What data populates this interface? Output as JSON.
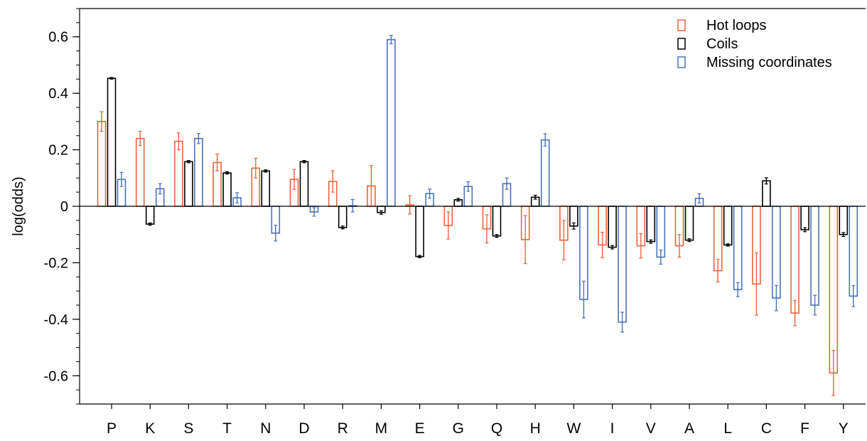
{
  "chart_data": {
    "type": "bar",
    "ylabel": "log(odds)",
    "xlabel": "",
    "ylim": [
      -0.7,
      0.7
    ],
    "yticks": [
      "0.6",
      "0.4",
      "0.2",
      "0",
      "-0.2",
      "-0.4",
      "-0.6"
    ],
    "ytick_values": [
      0.6,
      0.4,
      0.2,
      0,
      -0.2,
      -0.4,
      -0.6
    ],
    "minor_tick_step": 0.05,
    "grid": false,
    "legend_position": "top-right",
    "categories": [
      "P",
      "K",
      "S",
      "T",
      "N",
      "D",
      "R",
      "M",
      "E",
      "G",
      "Q",
      "H",
      "W",
      "I",
      "V",
      "A",
      "L",
      "C",
      "F",
      "Y"
    ],
    "series": [
      {
        "name": "Hot loops",
        "color": "#e8643c",
        "values": [
          0.3,
          0.24,
          0.23,
          0.155,
          0.135,
          0.095,
          0.088,
          0.072,
          0.005,
          -0.068,
          -0.08,
          -0.118,
          -0.12,
          -0.137,
          -0.14,
          -0.14,
          -0.228,
          -0.275,
          -0.378,
          -0.59
        ],
        "errors": [
          0.035,
          0.025,
          0.03,
          0.03,
          0.035,
          0.035,
          0.038,
          0.072,
          0.032,
          0.048,
          0.05,
          0.085,
          0.07,
          0.045,
          0.043,
          0.04,
          0.04,
          0.11,
          0.045,
          0.08
        ]
      },
      {
        "name": "Coils",
        "color": "#000000",
        "values": [
          0.453,
          -0.063,
          0.158,
          0.118,
          0.125,
          0.158,
          -0.075,
          -0.022,
          -0.178,
          0.023,
          -0.105,
          0.032,
          -0.07,
          -0.145,
          -0.125,
          -0.12,
          -0.137,
          0.09,
          -0.083,
          -0.1
        ],
        "errors": [
          0.003,
          0.004,
          0.004,
          0.004,
          0.004,
          0.004,
          0.005,
          0.006,
          0.004,
          0.005,
          0.005,
          0.007,
          0.011,
          0.006,
          0.006,
          0.005,
          0.004,
          0.011,
          0.007,
          0.007
        ]
      },
      {
        "name": "Missing coordinates",
        "color": "#4a72b8",
        "values": [
          0.095,
          0.062,
          0.24,
          0.03,
          -0.095,
          -0.02,
          0.002,
          0.59,
          0.045,
          0.07,
          0.08,
          0.235,
          -0.33,
          -0.41,
          -0.18,
          0.028,
          -0.295,
          -0.325,
          -0.35,
          -0.318
        ],
        "errors": [
          0.025,
          0.018,
          0.018,
          0.018,
          0.028,
          0.015,
          0.022,
          0.015,
          0.016,
          0.017,
          0.02,
          0.022,
          0.065,
          0.035,
          0.025,
          0.016,
          0.025,
          0.045,
          0.035,
          0.037
        ]
      }
    ]
  }
}
